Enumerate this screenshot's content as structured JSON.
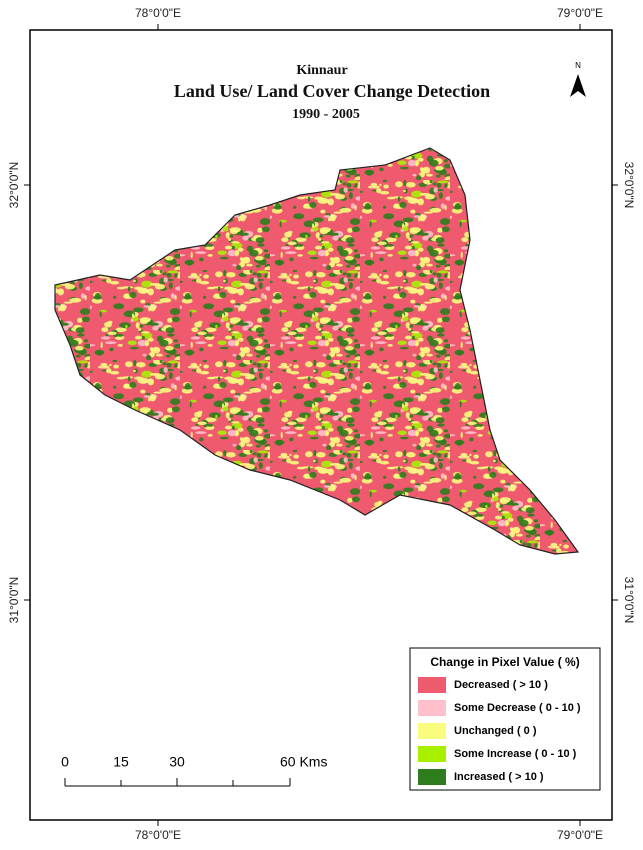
{
  "title": {
    "region": "Kinnaur",
    "heading": "Land Use/ Land Cover Change Detection",
    "period": "1990 - 2005"
  },
  "north_arrow": "N",
  "graticule": {
    "top": [
      "78°0'0\"E",
      "79°0'0\"E"
    ],
    "bottom": [
      "78°0'0\"E",
      "79°0'0\"E"
    ],
    "left": [
      "32°0'0\"N",
      "31°0'0\"N"
    ],
    "right": [
      "32°0'0\"N",
      "31°0'0\"N"
    ]
  },
  "legend": {
    "title": "Change in Pixel Value ( %)",
    "items": [
      {
        "label": "Decreased ( > 10 )",
        "color": "#ef5a6f"
      },
      {
        "label": "Some Decrease ( 0 - 10 )",
        "color": "#ffc0cb"
      },
      {
        "label": "Unchanged ( 0 )",
        "color": "#fbfb7e"
      },
      {
        "label": "Some Increase ( 0 - 10 )",
        "color": "#a8f000"
      },
      {
        "label": "Increased ( > 10 )",
        "color": "#2e7d1c"
      }
    ]
  },
  "scale_bar": {
    "labels": [
      "0",
      "15",
      "30",
      "60 Kms"
    ]
  }
}
